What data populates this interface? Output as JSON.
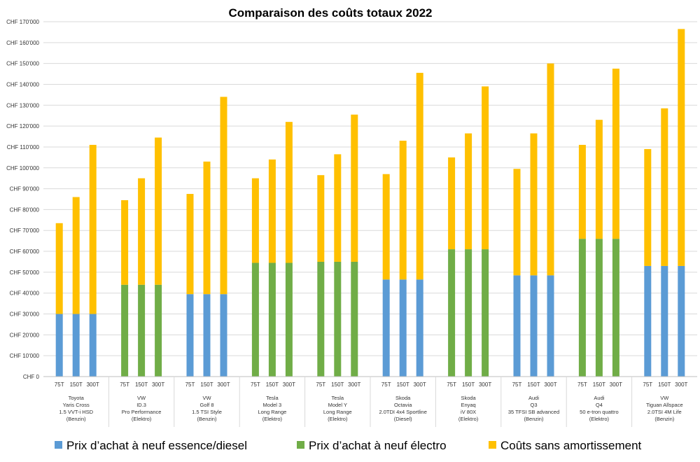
{
  "chart_data": {
    "type": "bar",
    "stacked": true,
    "title": "Comparaison des coûts totaux 2022",
    "ylim": [
      0,
      170000
    ],
    "ytick_step": 10000,
    "yticks": [
      "CHF 0",
      "CHF 10'000",
      "CHF 20'000",
      "CHF 30'000",
      "CHF 40'000",
      "CHF 50'000",
      "CHF 60'000",
      "CHF 70'000",
      "CHF 80'000",
      "CHF 90'000",
      "CHF 100'000",
      "CHF 110'000",
      "CHF 120'000",
      "CHF 130'000",
      "CHF 140'000",
      "CHF 150'000",
      "CHF 160'000",
      "CHF 170'000"
    ],
    "grid": true,
    "legend_position": "bottom",
    "colors": {
      "essence": "#5b9bd5",
      "electro": "#70ad47",
      "couts": "#ffc000"
    },
    "legend": [
      {
        "key": "essence",
        "label": "Prix d’achat à neuf essence/diesel"
      },
      {
        "key": "electro",
        "label": "Prix d’achat à neuf électro"
      },
      {
        "key": "couts",
        "label": "Coûts sans amortissement"
      }
    ],
    "groups": [
      {
        "label": [
          "Toyota",
          "Yaris Cross",
          "1.5 VVT-i HSD",
          "(Benzin)"
        ],
        "type": "essence",
        "purchase": 30000,
        "bars": [
          {
            "x": "75T",
            "total": 73500
          },
          {
            "x": "150T",
            "total": 86000
          },
          {
            "x": "300T",
            "total": 111000
          }
        ]
      },
      {
        "label": [
          "VW",
          "ID.3",
          "Pro Performance",
          "(Elektro)"
        ],
        "type": "electro",
        "purchase": 44000,
        "bars": [
          {
            "x": "75T",
            "total": 84500
          },
          {
            "x": "150T",
            "total": 95000
          },
          {
            "x": "300T",
            "total": 114500
          }
        ]
      },
      {
        "label": [
          "VW",
          "Golf 8",
          "1.5 TSI Style",
          "(Benzin)"
        ],
        "type": "essence",
        "purchase": 39500,
        "bars": [
          {
            "x": "75T",
            "total": 87500
          },
          {
            "x": "150T",
            "total": 103000
          },
          {
            "x": "300T",
            "total": 134000
          }
        ]
      },
      {
        "label": [
          "Tesla",
          "Model 3",
          "Long Range",
          "(Elektro)"
        ],
        "type": "electro",
        "purchase": 54500,
        "bars": [
          {
            "x": "75T",
            "total": 95000
          },
          {
            "x": "150T",
            "total": 104000
          },
          {
            "x": "300T",
            "total": 122000
          }
        ]
      },
      {
        "label": [
          "Tesla",
          "Model Y",
          "Long Range",
          "(Elektro)"
        ],
        "type": "electro",
        "purchase": 55000,
        "bars": [
          {
            "x": "75T",
            "total": 96500
          },
          {
            "x": "150T",
            "total": 106500
          },
          {
            "x": "300T",
            "total": 125500
          }
        ]
      },
      {
        "label": [
          "Skoda",
          "Octavia",
          "2.0TDI 4x4 Sportline",
          "(Diesel)"
        ],
        "type": "essence",
        "purchase": 46500,
        "bars": [
          {
            "x": "75T",
            "total": 97000
          },
          {
            "x": "150T",
            "total": 113000
          },
          {
            "x": "300T",
            "total": 145500
          }
        ]
      },
      {
        "label": [
          "Skoda",
          "Enyaq",
          "iV 80X",
          "(Elektro)"
        ],
        "type": "electro",
        "purchase": 61000,
        "bars": [
          {
            "x": "75T",
            "total": 105000
          },
          {
            "x": "150T",
            "total": 116500
          },
          {
            "x": "300T",
            "total": 139000
          }
        ]
      },
      {
        "label": [
          "Audi",
          "Q3",
          "35 TFSI SB advanced",
          "(Benzin)"
        ],
        "type": "essence",
        "purchase": 48500,
        "bars": [
          {
            "x": "75T",
            "total": 99500
          },
          {
            "x": "150T",
            "total": 116500
          },
          {
            "x": "300T",
            "total": 150000
          }
        ]
      },
      {
        "label": [
          "Audi",
          "Q4",
          "50 e-tron quattro",
          "(Elektro)"
        ],
        "type": "electro",
        "purchase": 66000,
        "bars": [
          {
            "x": "75T",
            "total": 111000
          },
          {
            "x": "150T",
            "total": 123000
          },
          {
            "x": "300T",
            "total": 147500
          }
        ]
      },
      {
        "label": [
          "VW",
          "Tiguan Allspace",
          "2.0TSI 4M Life",
          "(Benzin)"
        ],
        "type": "essence",
        "purchase": 53000,
        "bars": [
          {
            "x": "75T",
            "total": 109000
          },
          {
            "x": "150T",
            "total": 128500
          },
          {
            "x": "300T",
            "total": 166500
          }
        ]
      }
    ]
  }
}
